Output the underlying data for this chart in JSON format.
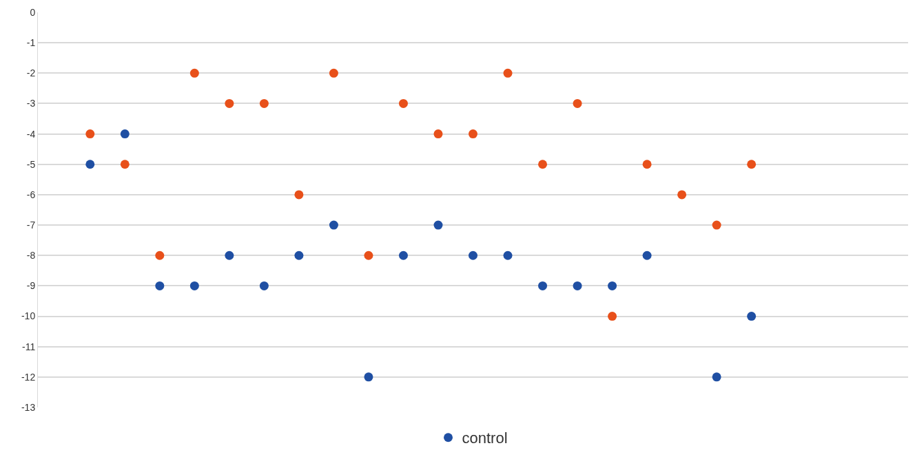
{
  "chart_data": {
    "type": "scatter",
    "categories": [
      null,
      null,
      null,
      null,
      null,
      null,
      null,
      null,
      null,
      null,
      null,
      null,
      null,
      null,
      null,
      null,
      null,
      null,
      null,
      null,
      null,
      null,
      null,
      null,
      null
    ],
    "series": [
      {
        "name": "control",
        "color": "#1f4fa3",
        "values": [
          null,
          -5,
          -4,
          -9,
          -9,
          -8,
          -9,
          -8,
          -7,
          -12,
          -8,
          -7,
          -8,
          -8,
          -9,
          -9,
          -9,
          -8,
          null,
          -12,
          -10,
          null,
          null,
          null,
          null
        ]
      },
      {
        "color": "#e8501a",
        "values": [
          null,
          -4,
          -5,
          -8,
          -2,
          -3,
          -3,
          -6,
          -2,
          -8,
          -3,
          -4,
          -4,
          -2,
          -5,
          -3,
          -10,
          -5,
          -6,
          -7,
          -5,
          null,
          null,
          null,
          null
        ]
      }
    ],
    "ylim": [
      -13,
      0
    ],
    "yticks": [
      -13,
      -12,
      -11,
      -10,
      -9,
      -8,
      -7,
      -6,
      -5,
      -4,
      -3,
      -2,
      -1,
      0
    ],
    "grid": "y",
    "legend": "bottom",
    "marker": "circle",
    "tick_labels": "y"
  }
}
